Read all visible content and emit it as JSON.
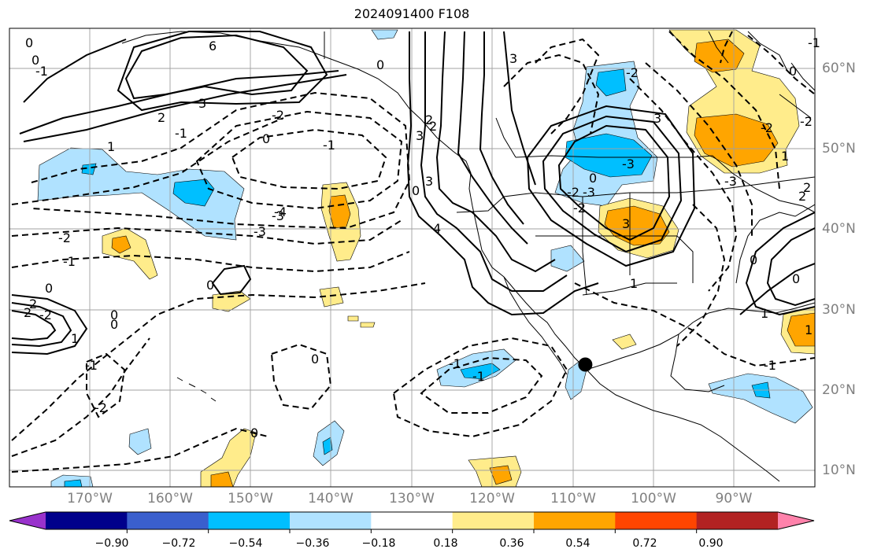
{
  "title": "2024091400 F108",
  "colors": {
    "background": "#ffffff",
    "grid": "#a0a0a0",
    "coast": "#000000",
    "contour": "#000000",
    "axis_label": "#808080"
  },
  "map": {
    "projection": "PlateCarree",
    "lon_range": [
      -180,
      -80
    ],
    "lat_range": [
      8,
      65
    ],
    "lon_labels": [
      "170°W",
      "160°W",
      "150°W",
      "140°W",
      "130°W",
      "120°W",
      "110°W",
      "100°W",
      "90°W"
    ],
    "lat_labels": [
      "60°N",
      "50°N",
      "40°N",
      "30°N",
      "20°N",
      "10°N"
    ],
    "marker": {
      "name": "storm-position-marker",
      "lon": -108.5,
      "lat": 23.2
    }
  },
  "colorbar": {
    "ticks": [
      "−0.90",
      "−0.72",
      "−0.54",
      "−0.36",
      "−0.18",
      "0.18",
      "0.36",
      "0.54",
      "0.72",
      "0.90"
    ],
    "colors": [
      "#9932cc",
      "#00008b",
      "#3a5fcd",
      "#00bfff",
      "#b0e2ff",
      "#ffffff",
      "#ffec8b",
      "#ffa500",
      "#ff4500",
      "#b22222",
      "#ff82ab"
    ],
    "extend": "both"
  },
  "contour_labels": [
    "6",
    "0",
    "0",
    "-1",
    "3",
    "2",
    "1",
    "-2",
    "-1",
    "0",
    "-3",
    "-4",
    "-3",
    "-2",
    "-1",
    "0",
    "0",
    "0",
    "2",
    "1",
    "0",
    "-1",
    "-2",
    "0",
    "0",
    "-1",
    "-1",
    "3",
    "4",
    "3",
    "2",
    "3",
    "-2",
    "-2",
    "-3",
    "-3",
    "-2",
    "0",
    "3",
    "-3",
    "3",
    "-2",
    "1",
    "0",
    "2",
    "1",
    "2",
    "1",
    "-1",
    "0",
    "-1",
    "-2",
    "0",
    "1",
    "-2",
    "0",
    "2",
    "0",
    "-1",
    "2"
  ]
}
